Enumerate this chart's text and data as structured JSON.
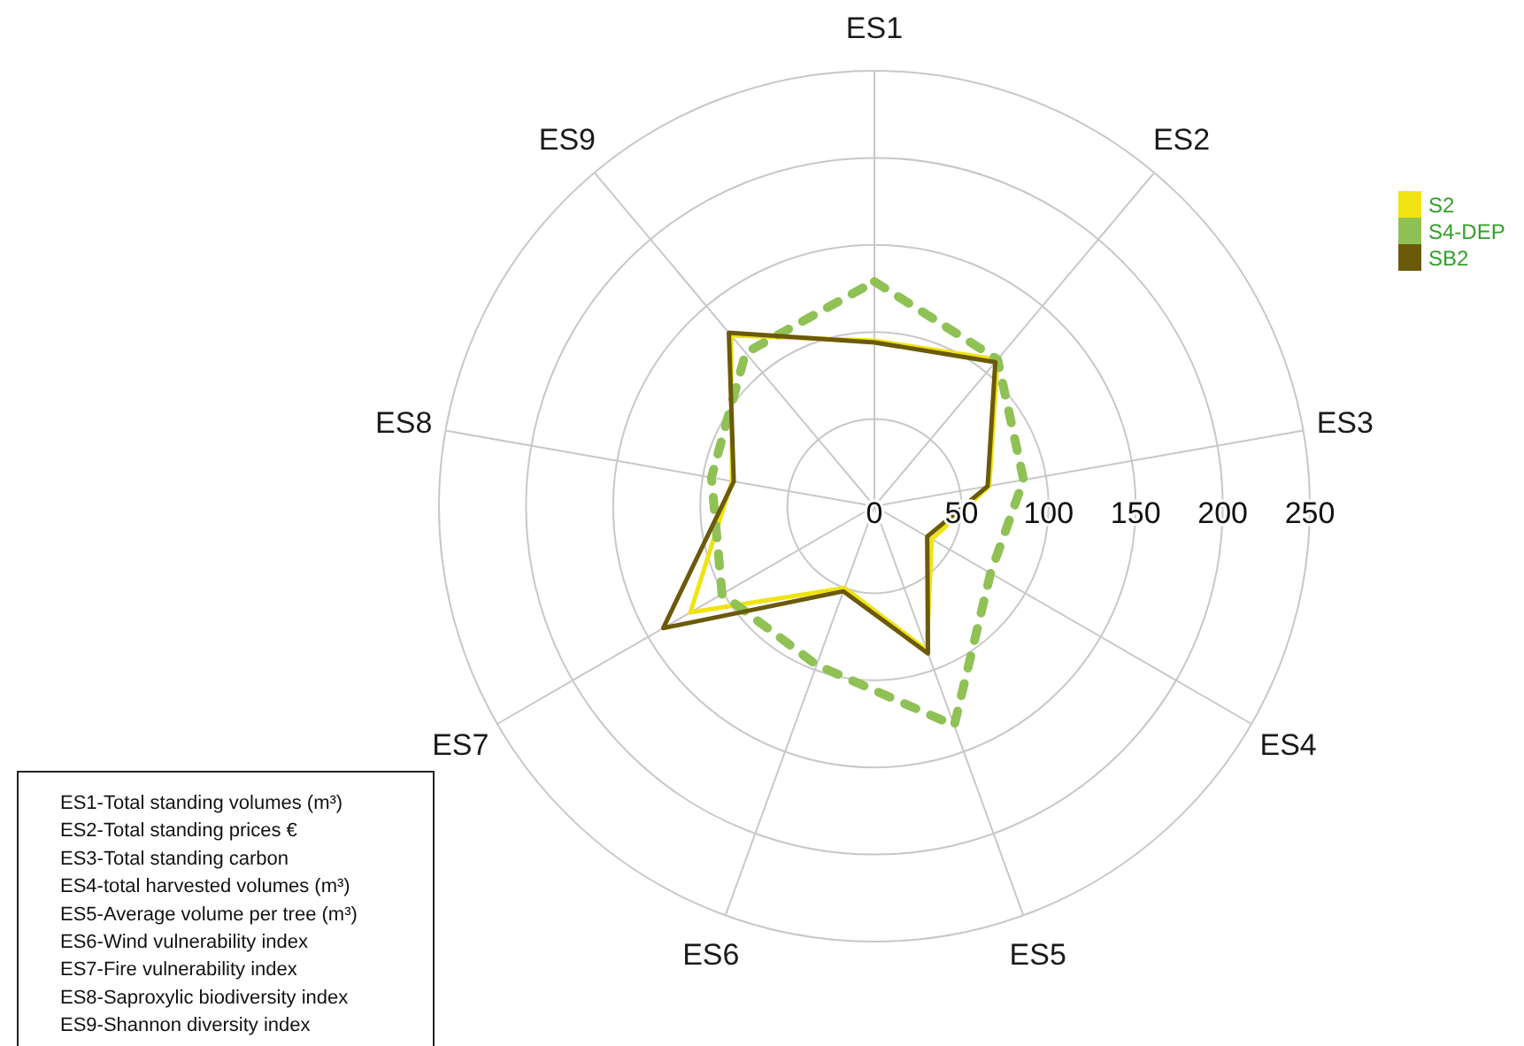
{
  "chart_data": {
    "type": "radar",
    "categories": [
      "ES1",
      "ES2",
      "ES3",
      "ES4",
      "ES5",
      "ES6",
      "ES7",
      "ES8",
      "ES9"
    ],
    "series": [
      {
        "name": "S2",
        "color": "#f0e311",
        "line_style": "solid",
        "values": [
          95,
          110,
          67,
          38,
          88,
          50,
          122,
          83,
          128
        ]
      },
      {
        "name": "S4-DEP",
        "color": "#8fc155",
        "line_style": "dashed",
        "values": [
          129,
          110,
          87,
          77,
          134,
          97,
          101,
          95,
          115
        ]
      },
      {
        "name": "SB2",
        "color": "#6b5a0a",
        "line_style": "solid",
        "values": [
          94,
          108,
          66,
          35,
          90,
          52,
          140,
          82,
          130
        ]
      }
    ],
    "ylim": [
      0,
      250
    ],
    "yticks": [
      0,
      50,
      100,
      150,
      200,
      250
    ],
    "grid": true,
    "legend": "top right",
    "annotations": [
      "ES1-Total standing volumes (m³)",
      "ES2-Total standing prices €",
      "ES3-Total standing carbon",
      "ES4-total harvested volumes (m³)",
      "ES5-Average volume per tree (m³)",
      "ES6-Wind vulnerability index",
      "ES7-Fire vulnerability index",
      "ES8-Saproxylic biodiversity index",
      "ES9-Shannon diversity index"
    ]
  }
}
